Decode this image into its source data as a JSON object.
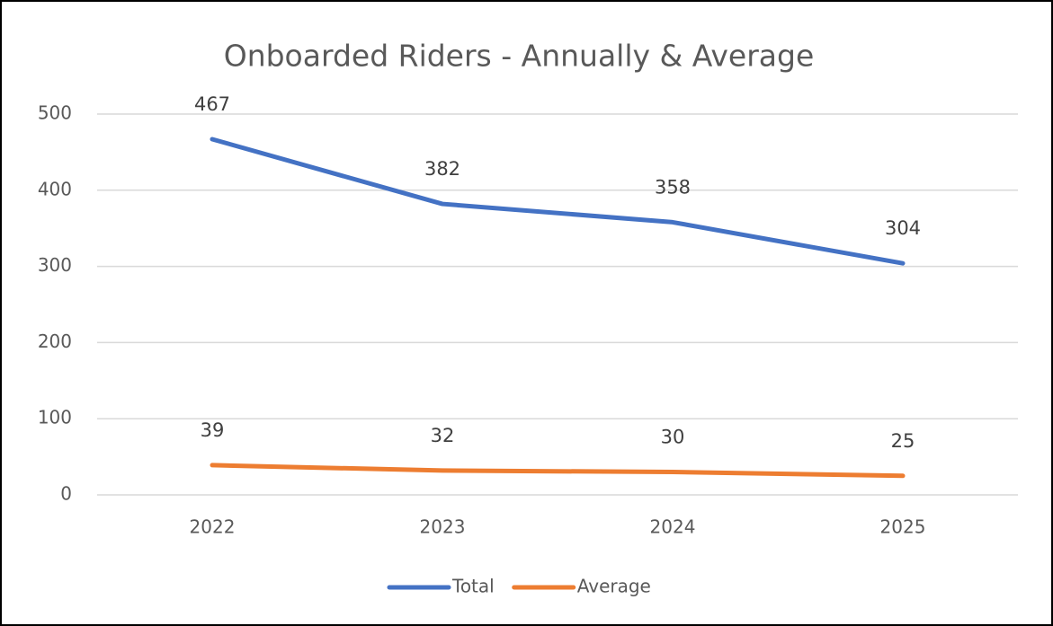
{
  "chart_data": {
    "type": "line",
    "title": "Onboarded Riders - Annually & Average",
    "categories": [
      "2022",
      "2023",
      "2024",
      "2025"
    ],
    "series": [
      {
        "name": "Total",
        "color": "#4472c4",
        "values": [
          467,
          382,
          358,
          304
        ]
      },
      {
        "name": "Average",
        "color": "#ed7d31",
        "values": [
          39,
          32,
          30,
          25
        ]
      }
    ],
    "ylim": [
      0,
      500
    ],
    "yticks": [
      0,
      100,
      200,
      300,
      400,
      500
    ],
    "grid": true,
    "legend": "bottom"
  }
}
